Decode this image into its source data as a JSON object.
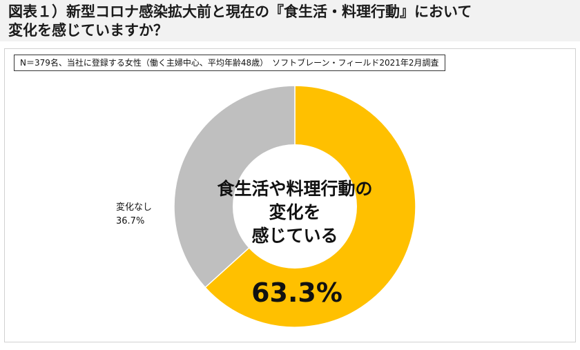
{
  "title": {
    "line1": "図表１）新型コロナ感染拡大前と現在の『食生活・料理行動』において",
    "line2": "変化を感じていますか？"
  },
  "note": "N＝379名、当社に登録する女性（働く主婦中心、平均年齢48歳）　ソフトブレーン・フィールド2021年2月調査",
  "chart_data": {
    "type": "pie",
    "style": "donut",
    "slices": [
      {
        "label": "食生活や料理行動の変化を感じている",
        "value": 63.3,
        "value_label": "63.3%",
        "color": "#ffc000"
      },
      {
        "label": "変化なし",
        "value": 36.7,
        "value_label": "36.7%",
        "color": "#bfbfbf"
      }
    ],
    "center_text": [
      "食生活や料理行動の",
      "変化を",
      "感じている"
    ],
    "main_value_label": "63.3%",
    "side_label": {
      "name": "変化なし",
      "value": "36.7%"
    }
  }
}
